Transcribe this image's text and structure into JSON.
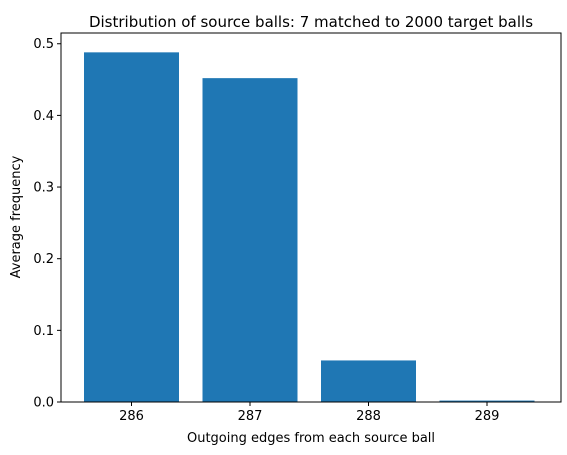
{
  "chart_data": {
    "type": "bar",
    "title": "Distribution of source balls: 7 matched to 2000 target balls",
    "xlabel": "Outgoing edges from each source ball",
    "ylabel": "Average frequency",
    "categories": [
      "286",
      "287",
      "288",
      "289"
    ],
    "values": [
      0.488,
      0.452,
      0.058,
      0.002
    ],
    "ylim": [
      0,
      0.515
    ],
    "yticks": [
      "0.0",
      "0.1",
      "0.2",
      "0.3",
      "0.4",
      "0.5"
    ],
    "bar_color": "#1f77b4",
    "grid": false,
    "legend": "none"
  }
}
